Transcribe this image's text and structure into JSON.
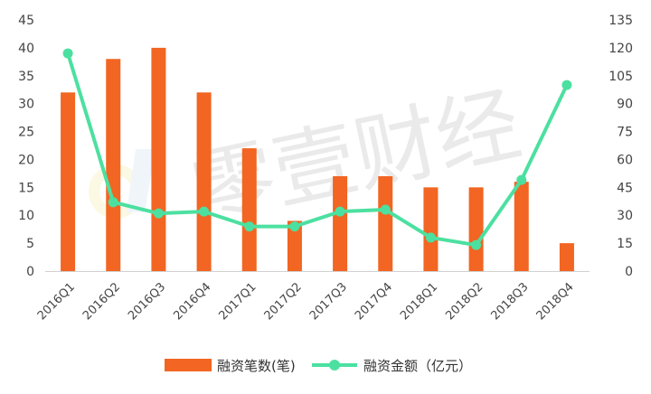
{
  "chart_data": {
    "type": "bar+line",
    "categories": [
      "2016Q1",
      "2016Q2",
      "2016Q3",
      "2016Q4",
      "2017Q1",
      "2017Q2",
      "2017Q3",
      "2017Q4",
      "2018Q1",
      "2018Q2",
      "2018Q3",
      "2018Q4"
    ],
    "series": [
      {
        "name": "融资笔数(笔)",
        "type": "bar",
        "axis": "left",
        "color": "#F26522",
        "values": [
          32,
          38,
          40,
          32,
          22,
          9,
          17,
          17,
          15,
          15,
          16,
          5
        ]
      },
      {
        "name": "融资金额（亿元）",
        "type": "line",
        "axis": "right",
        "color": "#4CE0A0",
        "values": [
          117,
          37,
          31,
          32,
          24,
          24,
          32,
          33,
          18,
          14,
          49,
          100
        ]
      }
    ],
    "ylim_left": [
      0,
      45
    ],
    "yticks_left": [
      0,
      5,
      10,
      15,
      20,
      25,
      30,
      35,
      40,
      45
    ],
    "ylim_right": [
      0,
      135
    ],
    "yticks_right": [
      0,
      15,
      30,
      45,
      60,
      75,
      90,
      105,
      120,
      135
    ],
    "legend_position": "bottom",
    "grid": false,
    "watermark": "零壹财经"
  }
}
